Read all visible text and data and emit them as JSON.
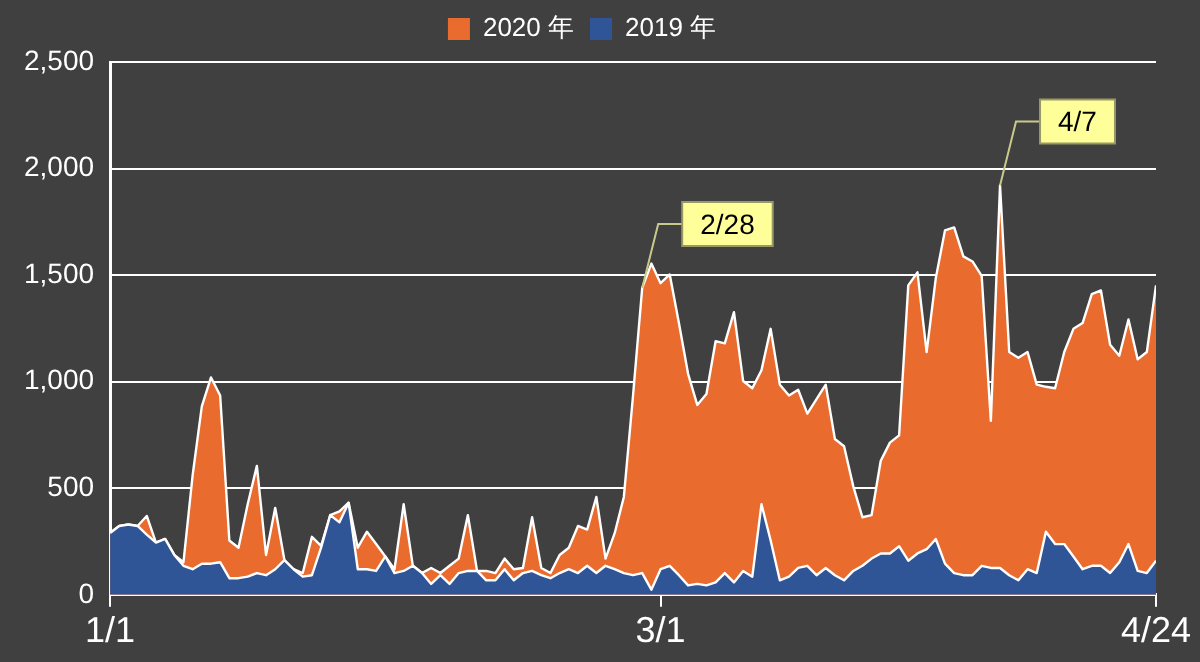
{
  "chart_data": {
    "type": "area",
    "x": [
      "--01-01",
      "--01-02",
      "--01-03",
      "--01-04",
      "--01-05",
      "--01-06",
      "--01-07",
      "--01-08",
      "--01-09",
      "--01-10",
      "--01-11",
      "--01-12",
      "--01-13",
      "--01-14",
      "--01-15",
      "--01-16",
      "--01-17",
      "--01-18",
      "--01-19",
      "--01-20",
      "--01-21",
      "--01-22",
      "--01-23",
      "--01-24",
      "--01-25",
      "--01-26",
      "--01-27",
      "--01-28",
      "--01-29",
      "--01-30",
      "--01-31",
      "--02-01",
      "--02-02",
      "--02-03",
      "--02-04",
      "--02-05",
      "--02-06",
      "--02-07",
      "--02-08",
      "--02-09",
      "--02-10",
      "--02-11",
      "--02-12",
      "--02-13",
      "--02-14",
      "--02-15",
      "--02-16",
      "--02-17",
      "--02-18",
      "--02-19",
      "--02-20",
      "--02-21",
      "--02-22",
      "--02-23",
      "--02-24",
      "--02-25",
      "--02-26",
      "--02-27",
      "--02-28",
      "--02-29",
      "--03-01",
      "--03-02",
      "--03-03",
      "--03-04",
      "--03-05",
      "--03-06",
      "--03-07",
      "--03-08",
      "--03-09",
      "--03-10",
      "--03-11",
      "--03-12",
      "--03-13",
      "--03-14",
      "--03-15",
      "--03-16",
      "--03-17",
      "--03-18",
      "--03-19",
      "--03-20",
      "--03-21",
      "--03-22",
      "--03-23",
      "--03-24",
      "--03-25",
      "--03-26",
      "--03-27",
      "--03-28",
      "--03-29",
      "--03-30",
      "--03-31",
      "--04-01",
      "--04-02",
      "--04-03",
      "--04-04",
      "--04-05",
      "--04-06",
      "--04-07",
      "--04-08",
      "--04-09",
      "--04-10",
      "--04-11",
      "--04-12",
      "--04-13",
      "--04-14",
      "--04-15",
      "--04-16",
      "--04-17",
      "--04-18",
      "--04-19",
      "--04-20",
      "--04-21",
      "--04-22",
      "--04-23",
      "--04-24"
    ],
    "series": [
      {
        "name": "2020 年",
        "color": "#e96b2d",
        "values": [
          290,
          323,
          330,
          323,
          370,
          245,
          262,
          187,
          153,
          561,
          884,
          1020,
          935,
          255,
          221,
          425,
          605,
          187,
          408,
          163,
          120,
          102,
          272,
          230,
          374,
          391,
          432,
          221,
          296,
          238,
          180,
          120,
          425,
          136,
          102,
          126,
          102,
          136,
          170,
          374,
          112,
          112,
          102,
          170,
          120,
          126,
          364,
          126,
          102,
          187,
          221,
          323,
          306,
          459,
          170,
          289,
          459,
          935,
          1440,
          1554,
          1462,
          1503,
          1275,
          1037,
          891,
          942,
          1190,
          1180,
          1326,
          1003,
          969,
          1054,
          1248,
          986,
          935,
          962,
          850,
          918,
          986,
          731,
          697,
          510,
          364,
          374,
          629,
          714,
          748,
          1452,
          1513,
          1139,
          1486,
          1710,
          1724,
          1588,
          1564,
          1496,
          816,
          1921,
          1139,
          1112,
          1139,
          986,
          976,
          969,
          1139,
          1248,
          1275,
          1411,
          1428,
          1173,
          1122,
          1292,
          1105,
          1139,
          1452
        ]
      },
      {
        "name": "2019 年",
        "color": "#2f5597",
        "values": [
          290,
          323,
          330,
          323,
          282,
          245,
          262,
          187,
          136,
          120,
          146,
          146,
          153,
          78,
          78,
          85,
          102,
          92,
          120,
          163,
          120,
          85,
          92,
          221,
          374,
          340,
          432,
          120,
          120,
          112,
          180,
          102,
          112,
          136,
          102,
          51,
          92,
          51,
          102,
          112,
          112,
          68,
          68,
          120,
          68,
          102,
          112,
          92,
          78,
          102,
          120,
          102,
          136,
          102,
          136,
          120,
          102,
          92,
          102,
          24,
          120,
          136,
          92,
          44,
          51,
          44,
          58,
          102,
          58,
          112,
          85,
          425,
          255,
          68,
          85,
          126,
          136,
          92,
          126,
          92,
          68,
          112,
          136,
          170,
          194,
          194,
          228,
          160,
          194,
          214,
          262,
          146,
          102,
          92,
          92,
          136,
          126,
          126,
          92,
          68,
          120,
          102,
          296,
          238,
          238,
          180,
          120,
          136,
          136,
          102,
          153,
          238,
          112,
          102,
          160
        ]
      }
    ],
    "xlim": [
      "--01-01",
      "--04-24"
    ],
    "xticks": [
      {
        "value": "--01-01",
        "label": "1/1"
      },
      {
        "value": "--03-01",
        "label": "3/1"
      },
      {
        "value": "--04-24",
        "label": "4/24"
      }
    ],
    "ylim": [
      0,
      2500
    ],
    "yticks": [
      0,
      500,
      {
        "value": 1000,
        "label": "1,000"
      },
      {
        "value": 1500,
        "label": "1,500"
      },
      {
        "value": 2000,
        "label": "2,000"
      },
      {
        "value": 2500,
        "label": "2,500"
      }
    ],
    "grid": "y",
    "legend": "top",
    "annotations": [
      {
        "text": "2/28",
        "x": "--02-28",
        "y": 1440
      },
      {
        "text": "4/7",
        "x": "--04-07",
        "y": 1921
      }
    ]
  }
}
